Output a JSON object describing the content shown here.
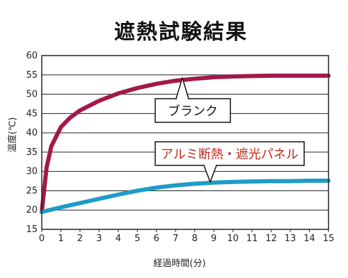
{
  "chart_data": {
    "type": "line",
    "title": "遮熱試験結果",
    "xlabel": "経過時間(分)",
    "ylabel": "温度(℃)",
    "xlim": [
      0,
      15
    ],
    "ylim": [
      15,
      60
    ],
    "x_ticks": [
      0,
      1,
      2,
      3,
      4,
      5,
      6,
      7,
      8,
      9,
      10,
      11,
      12,
      13,
      14,
      15
    ],
    "y_ticks": [
      15,
      20,
      25,
      30,
      35,
      40,
      45,
      50,
      55,
      60
    ],
    "grid": "horizontal",
    "series": [
      {
        "name": "ブランク",
        "color": "#a3184a",
        "x": [
          0,
          0.25,
          0.5,
          1,
          1.5,
          2,
          3,
          4,
          5,
          6,
          7,
          8,
          9,
          10,
          11,
          12,
          13,
          14,
          15
        ],
        "y": [
          19.5,
          31,
          36.5,
          41.5,
          44,
          45.8,
          48.3,
          50.2,
          51.6,
          52.7,
          53.5,
          54,
          54.4,
          54.6,
          54.7,
          54.8,
          54.8,
          54.8,
          54.8
        ]
      },
      {
        "name": "アルミ断熱・遮光パネル",
        "color": "#1f9cc8",
        "x": [
          0,
          1,
          2,
          3,
          4,
          5,
          6,
          7,
          8,
          9,
          10,
          11,
          12,
          13,
          14,
          15
        ],
        "y": [
          19.5,
          20.7,
          21.8,
          22.9,
          24,
          25,
          25.8,
          26.4,
          26.8,
          27.1,
          27.3,
          27.4,
          27.5,
          27.5,
          27.6,
          27.6
        ]
      }
    ],
    "annotations": [
      {
        "text": "ブランク",
        "series": 0,
        "text_color": "#111111"
      },
      {
        "text": "アルミ断熱・遮光パネル",
        "series": 1,
        "text_color": "#c0281c"
      }
    ]
  }
}
